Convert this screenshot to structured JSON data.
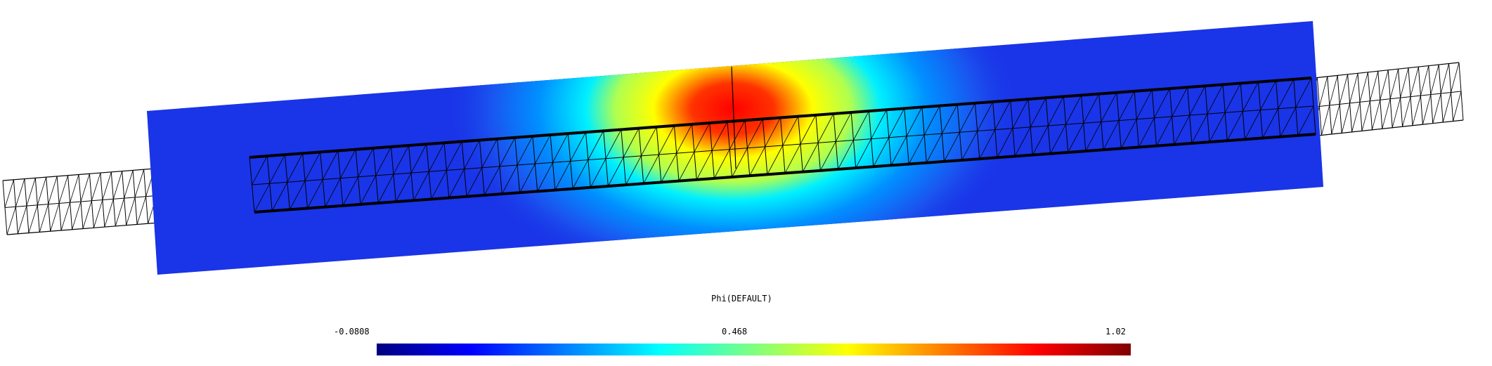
{
  "field": {
    "name": "Phi(DEFAULT)"
  },
  "colorbar": {
    "min_label": "-0.0808",
    "mid_label": "0.468",
    "max_label": "1.02",
    "stops": [
      "#00007f",
      "#0000ff",
      "#007fff",
      "#00ffff",
      "#7fff7f",
      "#ffff00",
      "#ff7f00",
      "#ff0000",
      "#7f0000"
    ]
  },
  "colors": {
    "background": "#ffffff",
    "domain_base": "#1a2ee6",
    "mesh": "#000000"
  }
}
